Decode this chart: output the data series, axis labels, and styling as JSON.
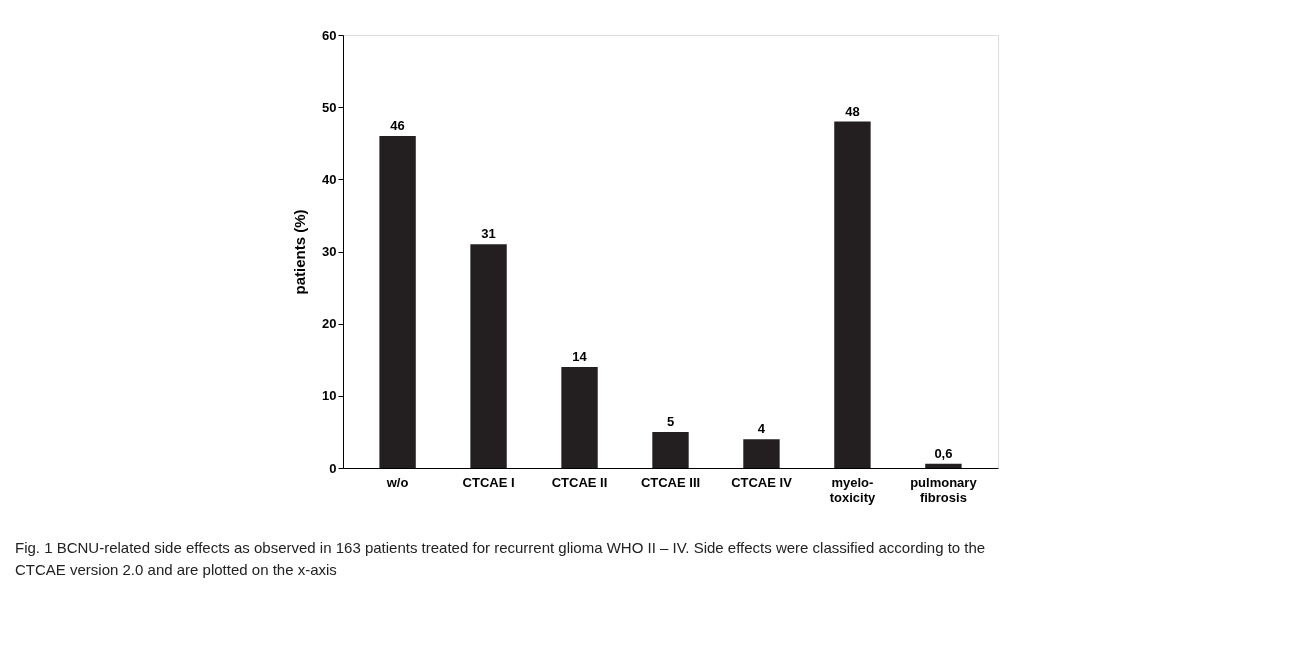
{
  "chart_data": {
    "type": "bar",
    "ylabel": "patients (%)",
    "categories": [
      "w/o",
      "CTCAE I",
      "CTCAE II",
      "CTCAE III",
      "CTCAE IV",
      "myelo-\ntoxicity",
      "pulmonary\nfibrosis"
    ],
    "values": [
      46,
      31,
      14,
      5,
      4,
      48,
      0.6
    ],
    "value_labels": [
      "46",
      "31",
      "14",
      "5",
      "4",
      "48",
      "0,6"
    ],
    "color": "#231f20",
    "ylim": [
      0,
      60
    ],
    "yticks": [
      0,
      10,
      20,
      30,
      40,
      50,
      60
    ],
    "grid": false,
    "annotations": [
      "Fig. 1 BCNU-related side effects as observed in 163 patients treated for recurrent glioma WHO II – IV. Side effects were classified according to the CTCAE version 2.0 and are plotted on the x-axis"
    ]
  }
}
